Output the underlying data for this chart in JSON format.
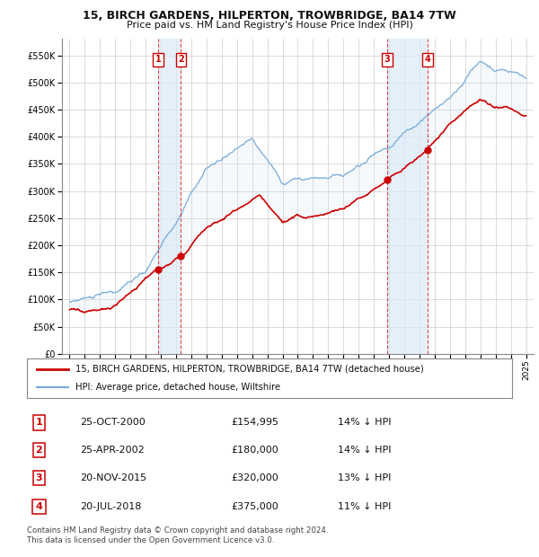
{
  "title1": "15, BIRCH GARDENS, HILPERTON, TROWBRIDGE, BA14 7TW",
  "title2": "Price paid vs. HM Land Registry's House Price Index (HPI)",
  "legend1": "15, BIRCH GARDENS, HILPERTON, TROWBRIDGE, BA14 7TW (detached house)",
  "legend2": "HPI: Average price, detached house, Wiltshire",
  "footer1": "Contains HM Land Registry data © Crown copyright and database right 2024.",
  "footer2": "This data is licensed under the Open Government Licence v3.0.",
  "transactions": [
    {
      "num": 1,
      "date": "25-OCT-2000",
      "price": "£154,995",
      "pct": "14%",
      "year_x": 2000.82
    },
    {
      "num": 2,
      "date": "25-APR-2002",
      "price": "£180,000",
      "pct": "14%",
      "year_x": 2002.32
    },
    {
      "num": 3,
      "date": "20-NOV-2015",
      "price": "£320,000",
      "pct": "13%",
      "year_x": 2015.89
    },
    {
      "num": 4,
      "date": "20-JUL-2018",
      "price": "£375,000",
      "pct": "11%",
      "year_x": 2018.55
    }
  ],
  "transaction_prices": [
    154995,
    180000,
    320000,
    375000
  ],
  "ylim": [
    0,
    580000
  ],
  "yticks": [
    0,
    50000,
    100000,
    150000,
    200000,
    250000,
    300000,
    350000,
    400000,
    450000,
    500000,
    550000
  ],
  "xlim": [
    1994.5,
    2025.5
  ],
  "xticks": [
    1995,
    1996,
    1997,
    1998,
    1999,
    2000,
    2001,
    2002,
    2003,
    2004,
    2005,
    2006,
    2007,
    2008,
    2009,
    2010,
    2011,
    2012,
    2013,
    2014,
    2015,
    2016,
    2017,
    2018,
    2019,
    2020,
    2021,
    2022,
    2023,
    2024,
    2025
  ],
  "hpi_color": "#74a9d8",
  "price_color": "#cc0000",
  "shade_color": "#daeaf7",
  "transaction_box_color": "#cc0000",
  "background_color": "#ffffff",
  "grid_color": "#cccccc"
}
